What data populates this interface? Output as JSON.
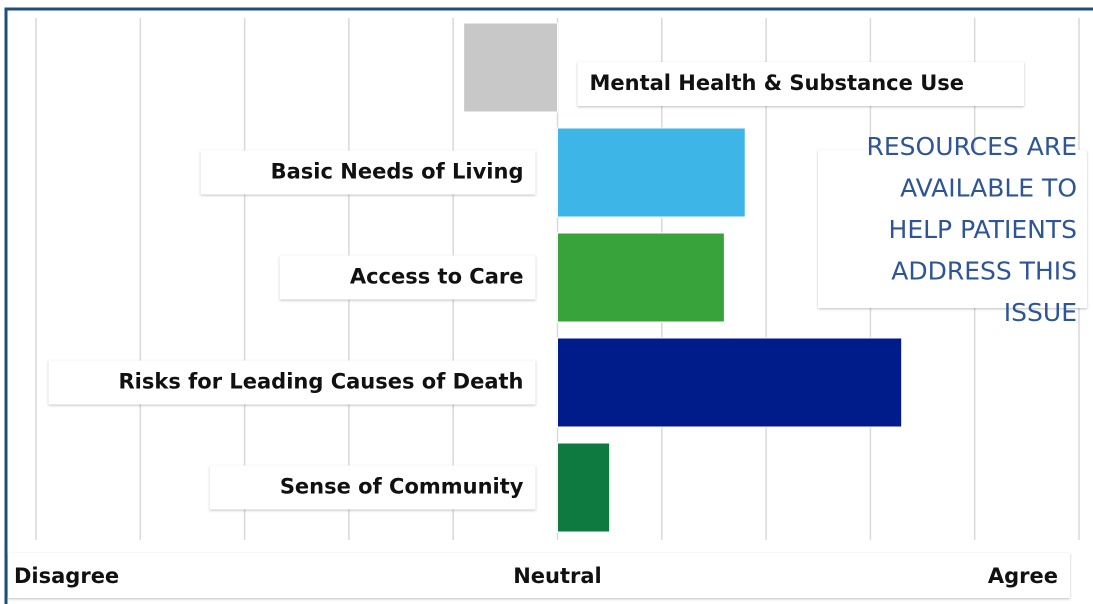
{
  "chart_data": {
    "type": "diverging-bar",
    "categories": [
      "Mental Health & Substance Use",
      "Basic Needs of Living",
      "Access to Care",
      "Risks for Leading Causes of Death",
      "Sense of Community"
    ],
    "values": [
      -0.9,
      1.8,
      1.6,
      3.3,
      0.5
    ],
    "colors": [
      "#c8c8c8",
      "#3db5e6",
      "#38a33a",
      "#001c8a",
      "#0f7a3f"
    ],
    "xlim": [
      -5,
      5
    ],
    "xticks": [
      -5,
      -4,
      -3,
      -2,
      -1,
      0,
      1,
      2,
      3,
      4,
      5
    ],
    "axis_labels": [
      {
        "value": -5,
        "label": "Disagree"
      },
      {
        "value": 0,
        "label": "Neutral"
      },
      {
        "value": 5,
        "label": "Agree"
      }
    ],
    "grid": true,
    "annotation": [
      "RESOURCES ARE",
      "AVAILABLE TO",
      "HELP PATIENTS",
      "ADDRESS THIS",
      "ISSUE"
    ]
  }
}
